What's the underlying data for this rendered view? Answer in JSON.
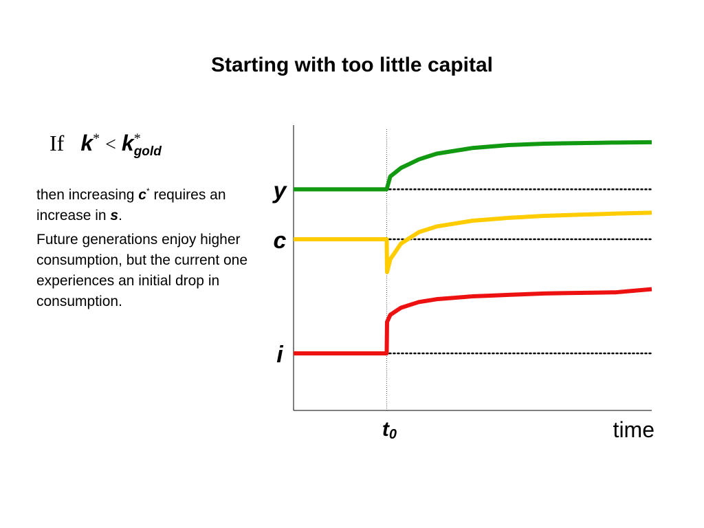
{
  "title": "Starting with too little capital",
  "condition": {
    "if_word": "If",
    "k_symbol": "k",
    "star": "*",
    "less_than": "<",
    "k_gold_symbol": "k",
    "gold_subscript": "gold"
  },
  "paragraph1": {
    "part1": "then increasing ",
    "c_symbol": "c",
    "star": "*",
    "part2": " requires an increase in ",
    "s_symbol": "s",
    "part3": "."
  },
  "paragraph2": "Future generations enjoy higher consumption, but the current one experiences an initial drop in consumption.",
  "chart_data": {
    "type": "line",
    "title": "",
    "xlabel": "time",
    "ylabel": "",
    "x_marker": {
      "label": "t",
      "subscript": "0",
      "x": 0.26
    },
    "xlim": [
      0,
      1
    ],
    "ylim": [
      0,
      1
    ],
    "series": [
      {
        "name": "y",
        "color": "#119911",
        "initial_level": 0.775,
        "x": [
          0,
          0.26,
          0.27,
          0.3,
          0.35,
          0.4,
          0.5,
          0.6,
          0.7,
          0.8,
          0.9,
          1.0
        ],
        "y": [
          0.775,
          0.775,
          0.82,
          0.85,
          0.88,
          0.9,
          0.92,
          0.93,
          0.935,
          0.937,
          0.939,
          0.94
        ]
      },
      {
        "name": "c",
        "color": "#ffcc00",
        "initial_level": 0.6,
        "x": [
          0,
          0.26,
          0.261,
          0.27,
          0.3,
          0.35,
          0.4,
          0.5,
          0.6,
          0.7,
          0.8,
          0.9,
          1.0
        ],
        "y": [
          0.6,
          0.6,
          0.485,
          0.53,
          0.585,
          0.625,
          0.645,
          0.665,
          0.675,
          0.682,
          0.686,
          0.69,
          0.693
        ]
      },
      {
        "name": "i",
        "color": "#ee1111",
        "initial_level": 0.2,
        "x": [
          0,
          0.26,
          0.261,
          0.27,
          0.3,
          0.35,
          0.4,
          0.5,
          0.6,
          0.7,
          0.8,
          0.9,
          1.0
        ],
        "y": [
          0.2,
          0.2,
          0.31,
          0.335,
          0.36,
          0.38,
          0.39,
          0.4,
          0.405,
          0.41,
          0.412,
          0.414,
          0.425
        ]
      }
    ]
  }
}
